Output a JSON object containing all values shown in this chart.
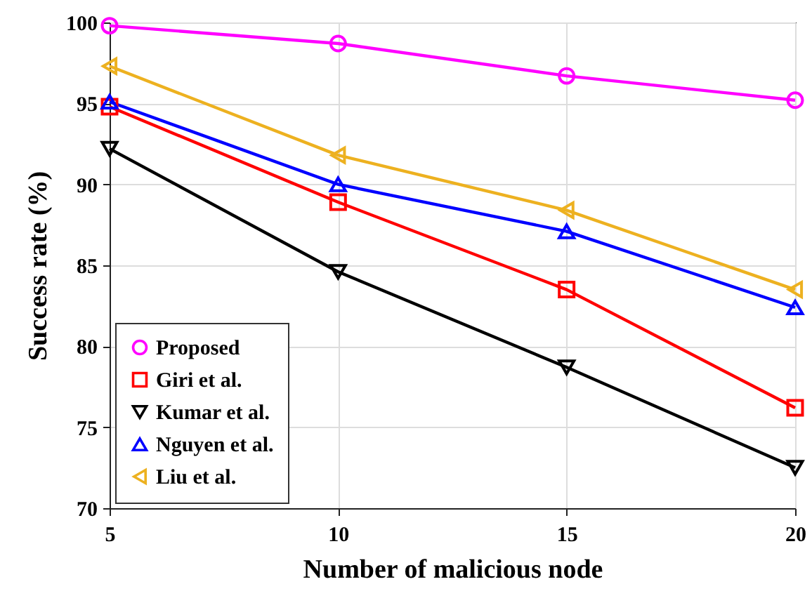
{
  "chart_data": {
    "type": "line",
    "xlabel": "Number of malicious node",
    "ylabel": "Success rate (%)",
    "x": [
      5,
      10,
      15,
      20
    ],
    "xlim": [
      5,
      20
    ],
    "xticks": [
      5,
      10,
      15,
      20
    ],
    "ylim": [
      70,
      100
    ],
    "yticks": [
      70,
      75,
      80,
      85,
      90,
      95,
      100
    ],
    "grid": true,
    "legend": "bottom left",
    "line_style": "solid",
    "series": [
      {
        "name": "Proposed",
        "color": "#ff00ff",
        "marker": "circle",
        "values": [
          99.8,
          98.7,
          96.7,
          95.2
        ]
      },
      {
        "name": "Giri et al.",
        "color": "#ff0000",
        "marker": "square",
        "values": [
          94.8,
          88.9,
          83.5,
          76.2
        ]
      },
      {
        "name": "Kumar et al.",
        "color": "#000000",
        "marker": "triangle-down",
        "values": [
          92.2,
          84.6,
          78.7,
          72.5
        ]
      },
      {
        "name": "Nguyen et al.",
        "color": "#0000ff",
        "marker": "triangle",
        "values": [
          95.1,
          90.0,
          87.1,
          82.4
        ]
      },
      {
        "name": "Liu et al.",
        "color": "#edb120",
        "marker": "triangle-left",
        "values": [
          97.3,
          91.8,
          88.4,
          83.5
        ]
      }
    ]
  }
}
